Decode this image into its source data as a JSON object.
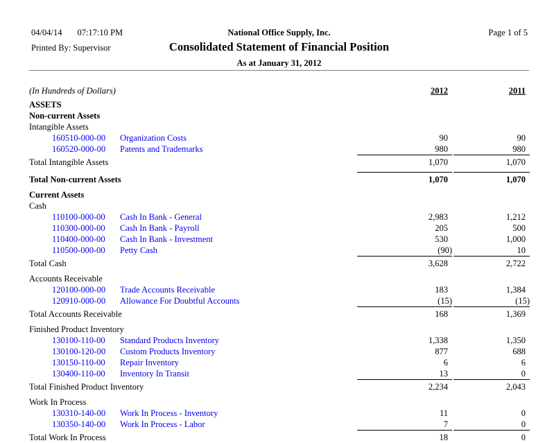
{
  "header": {
    "date": "04/04/14",
    "time": "07:17:10 PM",
    "company": "National Office Supply, Inc.",
    "page": "Page 1 of 5",
    "printed_by_label": "Printed By:",
    "printed_by": "Supervisor",
    "title": "Consolidated Statement of Financial Position",
    "subtitle": "As at January 31, 2012"
  },
  "table": {
    "units_label": "(In Hundreds of Dollars)",
    "col_2012": "2012",
    "col_2011": "2011",
    "rows": [
      {
        "kind": "section",
        "bold": true,
        "label": "ASSETS"
      },
      {
        "kind": "section",
        "bold": true,
        "label": "Non-current Assets"
      },
      {
        "kind": "section",
        "bold": false,
        "label": "Intangible Assets"
      },
      {
        "kind": "account",
        "code": "160510-000-00",
        "name": "Organization Costs",
        "y2012": "90",
        "y2011": "90"
      },
      {
        "kind": "account",
        "code": "160520-000-00",
        "name": "Patents and Trademarks",
        "y2012": "980",
        "y2011": "980"
      },
      {
        "kind": "total",
        "bold": false,
        "label": "Total Intangible Assets",
        "y2012": "1,070",
        "y2011": "1,070"
      },
      {
        "kind": "total",
        "bold": true,
        "label": "Total Non-current Assets",
        "y2012": "1,070",
        "y2011": "1,070",
        "gap": true
      },
      {
        "kind": "section",
        "bold": true,
        "label": "Current Assets",
        "gap": true
      },
      {
        "kind": "section",
        "bold": false,
        "label": "Cash"
      },
      {
        "kind": "account",
        "code": "110100-000-00",
        "name": "Cash In Bank - General",
        "y2012": "2,983",
        "y2011": "1,212"
      },
      {
        "kind": "account",
        "code": "110300-000-00",
        "name": "Cash In Bank - Payroll",
        "y2012": "205",
        "y2011": "500"
      },
      {
        "kind": "account",
        "code": "110400-000-00",
        "name": "Cash In Bank - Investment",
        "y2012": "530",
        "y2011": "1,000"
      },
      {
        "kind": "account",
        "code": "110500-000-00",
        "name": "Petty Cash",
        "y2012": "(90)",
        "y2011": "10"
      },
      {
        "kind": "total",
        "bold": false,
        "label": "Total Cash",
        "y2012": "3,628",
        "y2011": "2,722"
      },
      {
        "kind": "section",
        "bold": false,
        "label": "Accounts Receivable",
        "gap": true
      },
      {
        "kind": "account",
        "code": "120100-000-00",
        "name": "Trade Accounts Receivable",
        "y2012": "183",
        "y2011": "1,384"
      },
      {
        "kind": "account",
        "code": "120910-000-00",
        "name": "Allowance For Doubtful Accounts",
        "y2012": "(15)",
        "y2011": "(15)"
      },
      {
        "kind": "total",
        "bold": false,
        "label": "Total Accounts Receivable",
        "y2012": "168",
        "y2011": "1,369"
      },
      {
        "kind": "section",
        "bold": false,
        "label": "Finished Product Inventory",
        "gap": true
      },
      {
        "kind": "account",
        "code": "130100-110-00",
        "name": "Standard Products Inventory",
        "y2012": "1,338",
        "y2011": "1,350"
      },
      {
        "kind": "account",
        "code": "130100-120-00",
        "name": "Custom Products Inventory",
        "y2012": "877",
        "y2011": "688"
      },
      {
        "kind": "account",
        "code": "130150-110-00",
        "name": "Repair Inventory",
        "y2012": "6",
        "y2011": "6"
      },
      {
        "kind": "account",
        "code": "130400-110-00",
        "name": "Inventory In Transit",
        "y2012": "13",
        "y2011": "0"
      },
      {
        "kind": "total",
        "bold": false,
        "label": "Total Finished Product Inventory",
        "y2012": "2,234",
        "y2011": "2,043"
      },
      {
        "kind": "section",
        "bold": false,
        "label": "Work In Process",
        "gap": true
      },
      {
        "kind": "account",
        "code": "130310-140-00",
        "name": "Work In Process - Inventory",
        "y2012": "11",
        "y2011": "0"
      },
      {
        "kind": "account",
        "code": "130350-140-00",
        "name": "Work In Process - Labor",
        "y2012": "7",
        "y2011": "0"
      },
      {
        "kind": "total",
        "bold": false,
        "label": "Total Work In Process",
        "y2012": "18",
        "y2011": "0"
      }
    ]
  },
  "colors": {
    "account_link": "#0000EE",
    "header_rule": "#808080",
    "text": "#000000"
  }
}
